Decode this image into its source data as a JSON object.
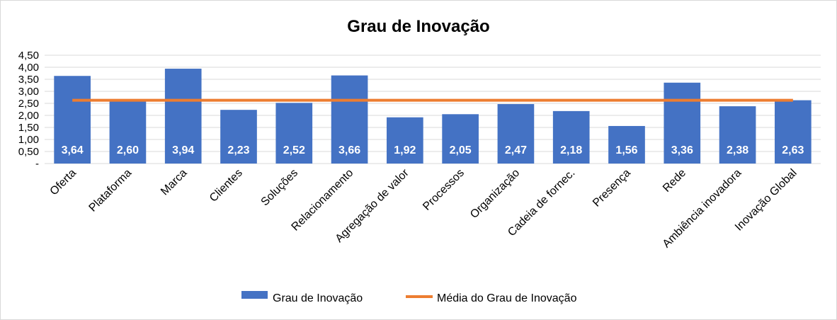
{
  "chart_data": {
    "type": "bar",
    "title": "Grau de Inovação",
    "categories": [
      "Oferta",
      "Plataforma",
      "Marca",
      "Clientes",
      "Soluções",
      "Relacionamento",
      "Agregação de valor",
      "Processos",
      "Organização",
      "Cadeia de fornec.",
      "Presença",
      "Rede",
      "Ambiência inovadora",
      "Inovação Global"
    ],
    "series": [
      {
        "name": "Grau de Inovação",
        "type": "bar",
        "color": "#4472c4",
        "values": [
          3.64,
          2.6,
          3.94,
          2.23,
          2.52,
          3.66,
          1.92,
          2.05,
          2.47,
          2.18,
          1.56,
          3.36,
          2.38,
          2.63
        ],
        "labels": [
          "3,64",
          "2,60",
          "3,94",
          "2,23",
          "2,52",
          "3,66",
          "1,92",
          "2,05",
          "2,47",
          "2,18",
          "1,56",
          "3,36",
          "2,38",
          "2,63"
        ]
      },
      {
        "name": "Média do Grau de Inovação",
        "type": "line",
        "color": "#ed7d31",
        "value": 2.63
      }
    ],
    "ylim": [
      0,
      4.5
    ],
    "yticks": [
      0,
      0.5,
      1.0,
      1.5,
      2.0,
      2.5,
      3.0,
      3.5,
      4.0,
      4.5
    ],
    "ytick_labels": [
      "-",
      "0,50",
      "1,00",
      "1,50",
      "2,00",
      "2,50",
      "3,00",
      "3,50",
      "4,00",
      "4,50"
    ],
    "grid": true,
    "legend_position": "bottom"
  }
}
